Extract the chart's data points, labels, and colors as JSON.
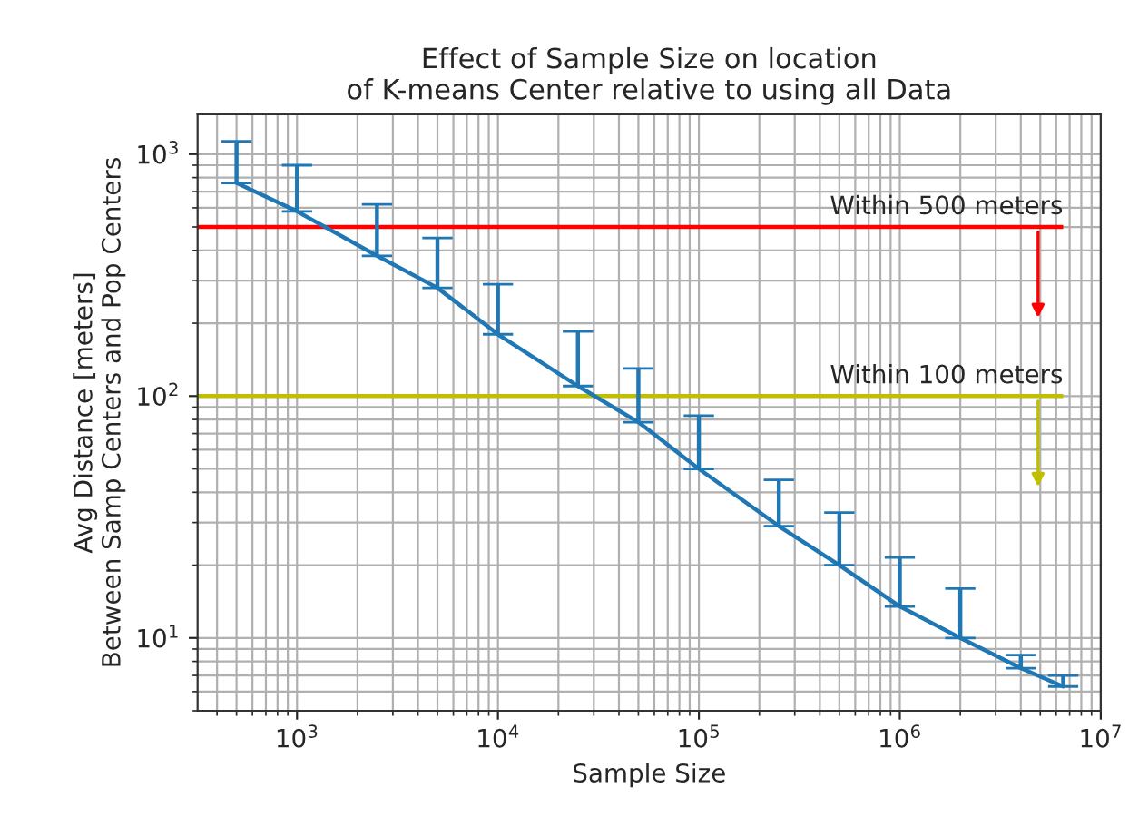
{
  "chart_data": {
    "type": "line",
    "title": "Effect of Sample Size on location\nof K-means Center relative to using all Data",
    "xlabel": "Sample Size",
    "ylabel": "Avg Distance [meters]\nBetween Samp Centers and Pop Centers",
    "x": [
      500,
      1000,
      2500,
      5000,
      10000,
      25000,
      50000,
      100000,
      250000,
      500000,
      1000000,
      2000000,
      4000000,
      6500000
    ],
    "series": [
      {
        "color": "#1f77b4",
        "values": [
          760,
          580,
          380,
          280,
          180,
          110,
          78,
          50,
          29,
          20,
          13.5,
          10,
          7.5,
          6.3
        ],
        "errors": [
          [
            760,
            1130
          ],
          [
            580,
            900
          ],
          [
            380,
            620
          ],
          [
            280,
            450
          ],
          [
            180,
            290
          ],
          [
            110,
            185
          ],
          [
            78,
            130
          ],
          [
            50,
            83
          ],
          [
            29,
            45
          ],
          [
            20,
            33
          ],
          [
            13.5,
            21.5
          ],
          [
            10,
            16
          ],
          [
            7.5,
            8.5
          ],
          [
            6.3,
            7
          ]
        ]
      }
    ],
    "log": "xy",
    "xlim": [
      320,
      10000000
    ],
    "ylim": [
      5,
      1460
    ],
    "xticks": [
      {
        "value": 1000,
        "label": "10$^{3}$"
      },
      {
        "value": 10000,
        "label": "10$^{4}$"
      },
      {
        "value": 100000,
        "label": "10$^{5}$"
      },
      {
        "value": 1000000,
        "label": "10$^{6}$"
      },
      {
        "value": 10000000,
        "label": "10$^{7}$"
      }
    ],
    "yticks": [
      {
        "value": 10,
        "label": "10$^{1}$"
      },
      {
        "value": 100,
        "label": "10$^{2}$"
      },
      {
        "value": 1000,
        "label": "10$^{3}$"
      }
    ],
    "ref_lines": [
      {
        "axis": "y",
        "value": 500,
        "label": "Within 500 meters",
        "color": "#ff0000"
      },
      {
        "axis": "y",
        "value": 100,
        "label": "Within 100 meters",
        "color": "#bfbf00"
      }
    ],
    "grid": true,
    "legend": false
  }
}
